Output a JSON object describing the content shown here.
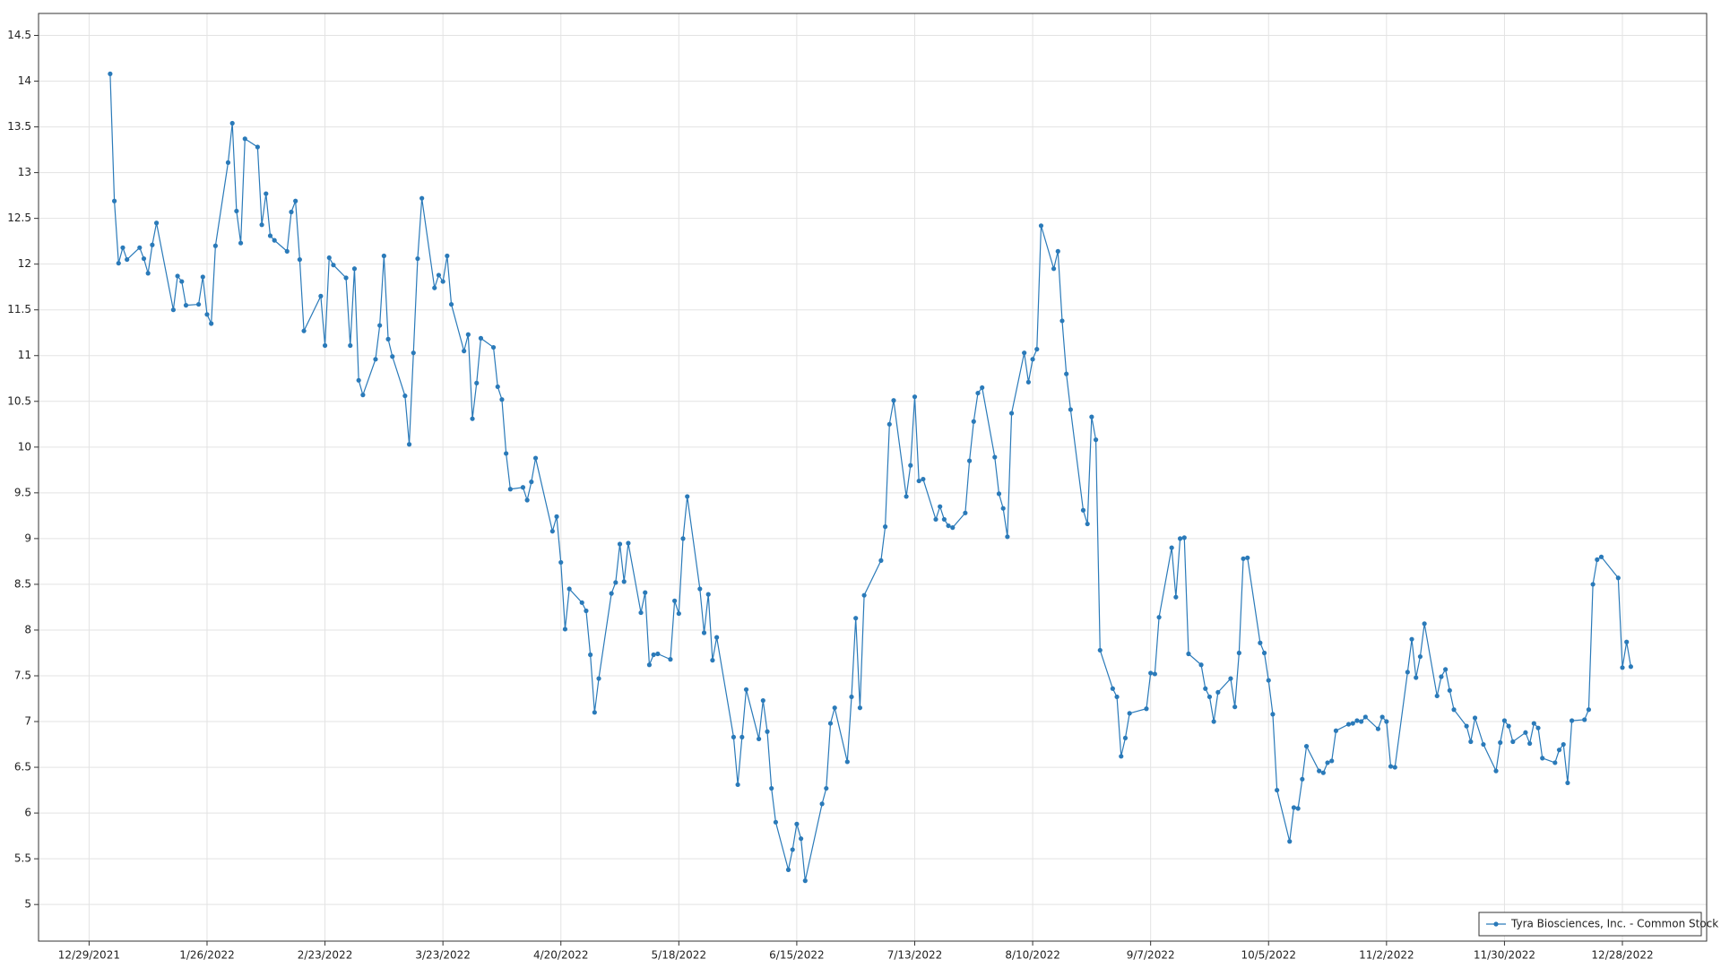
{
  "chart_data": {
    "type": "line",
    "x": [
      "1/3/2022",
      "1/4/2022",
      "1/5/2022",
      "1/6/2022",
      "1/7/2022",
      "1/10/2022",
      "1/11/2022",
      "1/12/2022",
      "1/13/2022",
      "1/14/2022",
      "1/18/2022",
      "1/19/2022",
      "1/20/2022",
      "1/21/2022",
      "1/24/2022",
      "1/25/2022",
      "1/26/2022",
      "1/27/2022",
      "1/28/2022",
      "1/31/2022",
      "2/1/2022",
      "2/2/2022",
      "2/3/2022",
      "2/4/2022",
      "2/7/2022",
      "2/8/2022",
      "2/9/2022",
      "2/10/2022",
      "2/11/2022",
      "2/14/2022",
      "2/15/2022",
      "2/16/2022",
      "2/17/2022",
      "2/18/2022",
      "2/22/2022",
      "2/23/2022",
      "2/24/2022",
      "2/25/2022",
      "2/28/2022",
      "3/1/2022",
      "3/2/2022",
      "3/3/2022",
      "3/4/2022",
      "3/7/2022",
      "3/8/2022",
      "3/9/2022",
      "3/10/2022",
      "3/11/2022",
      "3/14/2022",
      "3/15/2022",
      "3/16/2022",
      "3/17/2022",
      "3/18/2022",
      "3/21/2022",
      "3/22/2022",
      "3/23/2022",
      "3/24/2022",
      "3/25/2022",
      "3/28/2022",
      "3/29/2022",
      "3/30/2022",
      "3/31/2022",
      "4/1/2022",
      "4/4/2022",
      "4/5/2022",
      "4/6/2022",
      "4/7/2022",
      "4/8/2022",
      "4/11/2022",
      "4/12/2022",
      "4/13/2022",
      "4/14/2022",
      "4/18/2022",
      "4/19/2022",
      "4/20/2022",
      "4/21/2022",
      "4/22/2022",
      "4/25/2022",
      "4/26/2022",
      "4/27/2022",
      "4/28/2022",
      "4/29/2022",
      "5/2/2022",
      "5/3/2022",
      "5/4/2022",
      "5/5/2022",
      "5/6/2022",
      "5/9/2022",
      "5/10/2022",
      "5/11/2022",
      "5/12/2022",
      "5/13/2022",
      "5/16/2022",
      "5/17/2022",
      "5/18/2022",
      "5/19/2022",
      "5/20/2022",
      "5/23/2022",
      "5/24/2022",
      "5/25/2022",
      "5/26/2022",
      "5/27/2022",
      "5/31/2022",
      "6/1/2022",
      "6/2/2022",
      "6/3/2022",
      "6/6/2022",
      "6/7/2022",
      "6/8/2022",
      "6/9/2022",
      "6/10/2022",
      "6/13/2022",
      "6/14/2022",
      "6/15/2022",
      "6/16/2022",
      "6/17/2022",
      "6/21/2022",
      "6/22/2022",
      "6/23/2022",
      "6/24/2022",
      "6/27/2022",
      "6/28/2022",
      "6/29/2022",
      "6/30/2022",
      "7/1/2022",
      "7/5/2022",
      "7/6/2022",
      "7/7/2022",
      "7/8/2022",
      "7/11/2022",
      "7/12/2022",
      "7/13/2022",
      "7/14/2022",
      "7/15/2022",
      "7/18/2022",
      "7/19/2022",
      "7/20/2022",
      "7/21/2022",
      "7/22/2022",
      "7/25/2022",
      "7/26/2022",
      "7/27/2022",
      "7/28/2022",
      "7/29/2022",
      "8/1/2022",
      "8/2/2022",
      "8/3/2022",
      "8/4/2022",
      "8/5/2022",
      "8/8/2022",
      "8/9/2022",
      "8/10/2022",
      "8/11/2022",
      "8/12/2022",
      "8/15/2022",
      "8/16/2022",
      "8/17/2022",
      "8/18/2022",
      "8/19/2022",
      "8/22/2022",
      "8/23/2022",
      "8/24/2022",
      "8/25/2022",
      "8/26/2022",
      "8/29/2022",
      "8/30/2022",
      "8/31/2022",
      "9/1/2022",
      "9/2/2022",
      "9/6/2022",
      "9/7/2022",
      "9/8/2022",
      "9/9/2022",
      "9/12/2022",
      "9/13/2022",
      "9/14/2022",
      "9/15/2022",
      "9/16/2022",
      "9/19/2022",
      "9/20/2022",
      "9/21/2022",
      "9/22/2022",
      "9/23/2022",
      "9/26/2022",
      "9/27/2022",
      "9/28/2022",
      "9/29/2022",
      "9/30/2022",
      "10/3/2022",
      "10/4/2022",
      "10/5/2022",
      "10/6/2022",
      "10/7/2022",
      "10/10/2022",
      "10/11/2022",
      "10/12/2022",
      "10/13/2022",
      "10/14/2022",
      "10/17/2022",
      "10/18/2022",
      "10/19/2022",
      "10/20/2022",
      "10/21/2022",
      "10/24/2022",
      "10/25/2022",
      "10/26/2022",
      "10/27/2022",
      "10/28/2022",
      "10/31/2022",
      "11/1/2022",
      "11/2/2022",
      "11/3/2022",
      "11/4/2022",
      "11/7/2022",
      "11/8/2022",
      "11/9/2022",
      "11/10/2022",
      "11/11/2022",
      "11/14/2022",
      "11/15/2022",
      "11/16/2022",
      "11/17/2022",
      "11/18/2022",
      "11/21/2022",
      "11/22/2022",
      "11/23/2022",
      "11/25/2022",
      "11/28/2022",
      "11/29/2022",
      "11/30/2022",
      "12/1/2022",
      "12/2/2022",
      "12/5/2022",
      "12/6/2022",
      "12/7/2022",
      "12/8/2022",
      "12/9/2022",
      "12/12/2022",
      "12/13/2022",
      "12/14/2022",
      "12/15/2022",
      "12/16/2022",
      "12/19/2022",
      "12/20/2022",
      "12/21/2022",
      "12/22/2022",
      "12/23/2022",
      "12/27/2022",
      "12/28/2022",
      "12/29/2022",
      "12/30/2022"
    ],
    "series": [
      {
        "name": "Tyra Biosciences, Inc. - Common Stock",
        "color": "#2a7ab9",
        "values": [
          14.08,
          12.69,
          12.01,
          12.18,
          12.05,
          12.18,
          12.06,
          11.9,
          12.21,
          12.45,
          11.5,
          11.87,
          11.81,
          11.55,
          11.56,
          11.86,
          11.45,
          11.35,
          12.2,
          13.11,
          13.54,
          12.58,
          12.23,
          13.37,
          13.28,
          12.43,
          12.77,
          12.31,
          12.26,
          12.14,
          12.57,
          12.69,
          12.05,
          11.27,
          11.65,
          11.11,
          12.07,
          11.99,
          11.85,
          11.11,
          11.95,
          10.73,
          10.57,
          10.96,
          11.33,
          12.09,
          11.18,
          10.99,
          10.56,
          10.03,
          11.03,
          12.06,
          12.72,
          11.74,
          11.88,
          11.81,
          12.09,
          11.56,
          11.05,
          11.23,
          10.31,
          10.7,
          11.19,
          11.09,
          10.66,
          10.52,
          9.93,
          9.54,
          9.56,
          9.42,
          9.62,
          9.88,
          9.08,
          9.24,
          8.74,
          8.01,
          8.45,
          8.3,
          8.21,
          7.73,
          7.1,
          7.47,
          8.4,
          8.52,
          8.94,
          8.53,
          8.95,
          8.19,
          8.41,
          7.62,
          7.73,
          7.74,
          7.68,
          8.32,
          8.18,
          9.0,
          9.46,
          8.45,
          7.97,
          8.39,
          7.67,
          7.92,
          6.83,
          6.31,
          6.83,
          7.35,
          6.81,
          7.23,
          6.89,
          6.27,
          5.9,
          5.38,
          5.6,
          5.88,
          5.72,
          5.26,
          6.1,
          6.27,
          6.98,
          7.15,
          6.56,
          7.27,
          8.13,
          7.15,
          8.38,
          8.76,
          9.13,
          10.25,
          10.51,
          9.46,
          9.8,
          10.55,
          9.63,
          9.65,
          9.21,
          9.35,
          9.21,
          9.14,
          9.12,
          9.28,
          9.85,
          10.28,
          10.59,
          10.65,
          9.89,
          9.49,
          9.33,
          9.02,
          10.37,
          11.03,
          10.71,
          10.96,
          11.07,
          12.42,
          11.95,
          12.14,
          11.38,
          10.8,
          10.41,
          9.31,
          9.16,
          10.33,
          10.08,
          7.78,
          7.36,
          7.27,
          6.62,
          6.82,
          7.09,
          7.14,
          7.53,
          7.52,
          8.14,
          8.9,
          8.36,
          9.0,
          9.01,
          7.74,
          7.62,
          7.36,
          7.27,
          7.0,
          7.32,
          7.47,
          7.16,
          7.75,
          8.78,
          8.79,
          7.86,
          7.75,
          7.45,
          7.08,
          6.25,
          5.69,
          6.06,
          6.05,
          6.37,
          6.73,
          6.46,
          6.44,
          6.55,
          6.57,
          6.9,
          6.97,
          6.98,
          7.01,
          7.0,
          7.05,
          6.92,
          7.05,
          7.0,
          6.51,
          6.5,
          7.54,
          7.9,
          7.48,
          7.71,
          8.07,
          7.28,
          7.49,
          7.57,
          7.34,
          7.13,
          6.95,
          6.78,
          7.04,
          6.75,
          6.46,
          6.77,
          7.01,
          6.95,
          6.78,
          6.88,
          6.76,
          6.98,
          6.93,
          6.6,
          6.55,
          6.69,
          6.75,
          6.33,
          7.01,
          7.02,
          7.13,
          8.5,
          8.77,
          8.8,
          8.57,
          7.59,
          7.87,
          7.6
        ]
      }
    ],
    "xlim": [
      "12/17/2021",
      "1/17/2023"
    ],
    "xticks": [
      "12/29/2021",
      "1/26/2022",
      "2/23/2022",
      "3/23/2022",
      "4/20/2022",
      "5/18/2022",
      "6/15/2022",
      "7/13/2022",
      "8/10/2022",
      "9/7/2022",
      "10/5/2022",
      "11/2/2022",
      "11/30/2022",
      "12/28/2022"
    ],
    "ylim": [
      4.6,
      14.74
    ],
    "yticks": [
      5,
      5.5,
      6,
      6.5,
      7,
      7.5,
      8,
      8.5,
      9,
      9.5,
      10,
      10.5,
      11,
      11.5,
      12,
      12.5,
      13,
      13.5,
      14,
      14.5
    ],
    "grid": true,
    "legend": "lower right"
  }
}
